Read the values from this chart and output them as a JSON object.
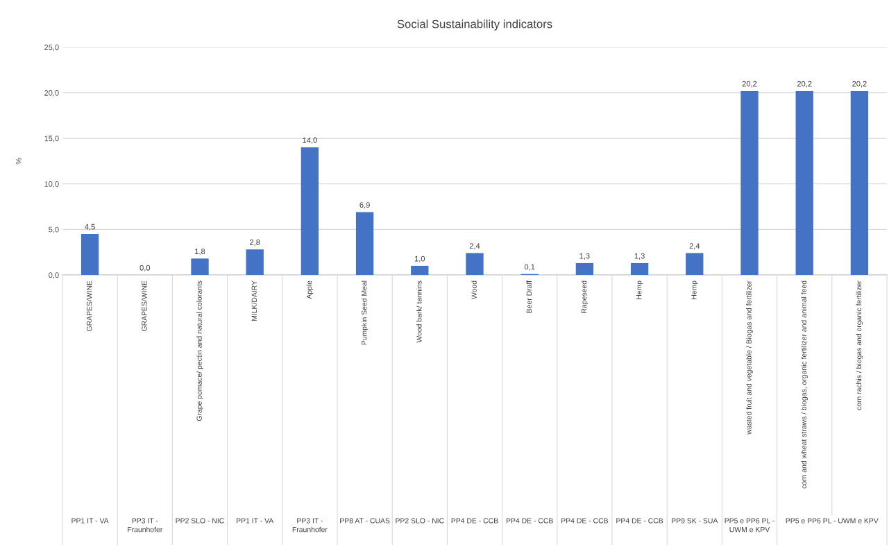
{
  "chart_data": {
    "type": "bar",
    "title": "Social Sustainability indicators",
    "ylabel": "%",
    "categories": [
      "GRAPES/WINE",
      "GRAPES/WINE",
      "Grape pomace/ pectin and natural colorants",
      "MILK/DAIRY",
      "Apple",
      "Pumpkin Seed Meal",
      "Wood bark/ tannins",
      "Wood",
      "Beer Draff",
      "Rapeseed",
      "Hemp",
      "Hemp",
      "wasted fruit and vegetable / Biogas and fertilizer",
      "corn and wheat straws / biogas, organic fertilizer and animal feed",
      "corn rachis / biogas and organic fertilizer"
    ],
    "values": [
      4.5,
      0.0,
      1.8,
      2.8,
      14.0,
      6.9,
      1.0,
      2.4,
      0.1,
      1.3,
      1.3,
      2.4,
      20.2,
      20.2,
      20.2
    ],
    "value_labels": [
      "4,5",
      "0,0",
      "1,8",
      "2,8",
      "14,0",
      "6,9",
      "1,0",
      "2,4",
      "0,1",
      "1,3",
      "1,3",
      "2,4",
      "20,2",
      "20,2",
      "20,2"
    ],
    "color": "#4472c4",
    "ylim": [
      0,
      25
    ],
    "yticks": [
      {
        "value": 0,
        "label": "0,0"
      },
      {
        "value": 5,
        "label": "5,0"
      },
      {
        "value": 10,
        "label": "10,0"
      },
      {
        "value": 15,
        "label": "15,0"
      },
      {
        "value": 20,
        "label": "20,0"
      },
      {
        "value": 25,
        "label": "25,0"
      }
    ],
    "grid": "y",
    "annotations": [
      "PP1 IT - VA",
      "PP3 IT - Fraunhofer",
      "PP2 SLO - NIC",
      "PP1 IT - VA",
      "PP3 IT - Fraunhofer",
      "PP8 AT - CUAS",
      "PP2 SLO - NIC",
      "PP4 DE - CCB",
      "PP4 DE - CCB",
      "PP4 DE - CCB",
      "PP4 DE - CCB",
      "PP9 SK - SUA",
      "PP5 e PP6 PL - UWM e KPV",
      "PP5 e PP6 PL - UWM e KPV"
    ]
  }
}
